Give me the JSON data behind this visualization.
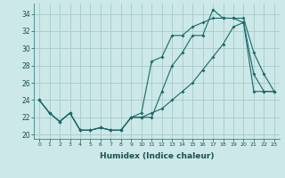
{
  "xlabel": "Humidex (Indice chaleur)",
  "bg_color": "#cce8e8",
  "grid_color": "#aacaca",
  "line_color": "#1a6868",
  "xlim": [
    -0.5,
    23.5
  ],
  "ylim": [
    19.5,
    35.2
  ],
  "xticks": [
    0,
    1,
    2,
    3,
    4,
    5,
    6,
    7,
    8,
    9,
    10,
    11,
    12,
    13,
    14,
    15,
    16,
    17,
    18,
    19,
    20,
    21,
    22,
    23
  ],
  "yticks": [
    20,
    22,
    24,
    26,
    28,
    30,
    32,
    34
  ],
  "line1_x": [
    0,
    1,
    2,
    3,
    4,
    5,
    6,
    7,
    8,
    9,
    10,
    11,
    12,
    13,
    14,
    15,
    16,
    17,
    18,
    19,
    20,
    21,
    22,
    23
  ],
  "line1_y": [
    24,
    22.5,
    21.5,
    22.5,
    20.5,
    20.5,
    20.8,
    20.5,
    20.5,
    22,
    22,
    22,
    25,
    28,
    29.5,
    31.5,
    31.5,
    34.5,
    33.5,
    33.5,
    33.5,
    29.5,
    27,
    25
  ],
  "line2_x": [
    0,
    1,
    2,
    3,
    4,
    5,
    6,
    7,
    8,
    9,
    10,
    11,
    12,
    13,
    14,
    15,
    16,
    17,
    18,
    19,
    20,
    21,
    22,
    23
  ],
  "line2_y": [
    24,
    22.5,
    21.5,
    22.5,
    20.5,
    20.5,
    20.8,
    20.5,
    20.5,
    22,
    22.5,
    28.5,
    29,
    31.5,
    31.5,
    32.5,
    33,
    33.5,
    33.5,
    33.5,
    33,
    27,
    25,
    25
  ],
  "line3_x": [
    0,
    1,
    2,
    3,
    4,
    5,
    6,
    7,
    8,
    9,
    10,
    11,
    12,
    13,
    14,
    15,
    16,
    17,
    18,
    19,
    20,
    21,
    22,
    23
  ],
  "line3_y": [
    24,
    22.5,
    21.5,
    22.5,
    20.5,
    20.5,
    20.8,
    20.5,
    20.5,
    22,
    22,
    22.5,
    23,
    24,
    25,
    26,
    27.5,
    29,
    30.5,
    32.5,
    33,
    25,
    25,
    25
  ]
}
